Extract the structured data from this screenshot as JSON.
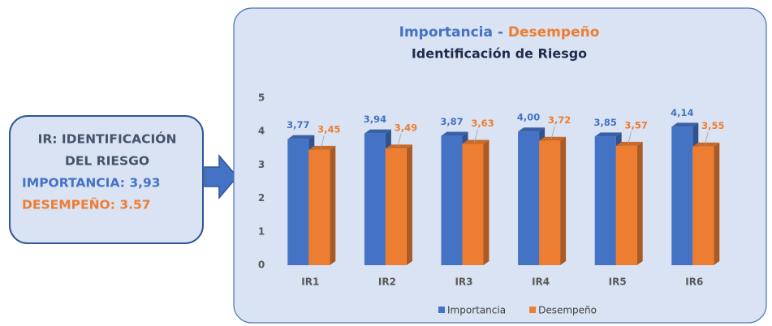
{
  "callout": {
    "lines": [
      "IR: IDENTIFICACIÓN",
      "DEL RIESGO"
    ],
    "importance": "IMPORTANCIA: 3,93",
    "performance": "DESEMPEÑO: 3.57"
  },
  "chart_data": {
    "type": "bar3d",
    "title": [
      "Importancia",
      "-",
      "Desempeño"
    ],
    "subtitle": "Identificación de Riesgo",
    "categories": [
      "IR1",
      "IR2",
      "IR3",
      "IR4",
      "IR5",
      "IR6"
    ],
    "series": [
      {
        "name": "Importancia",
        "color": "#4472c4",
        "values": [
          3.77,
          3.94,
          3.87,
          4.0,
          3.85,
          4.14
        ],
        "value_labels": [
          "3,77",
          "3,94",
          "3,87",
          "4,00",
          "3,85",
          "4,14"
        ]
      },
      {
        "name": "Desempeño",
        "color": "#ed7d31",
        "values": [
          3.45,
          3.49,
          3.63,
          3.72,
          3.57,
          3.55
        ],
        "value_labels": [
          "3,45",
          "3,49",
          "3,63",
          "3,72",
          "3,57",
          "3,55"
        ]
      }
    ],
    "ylim": [
      0,
      5
    ],
    "yticks": [
      0,
      1,
      2,
      3,
      4,
      5
    ],
    "grid": false,
    "legend": "bottom"
  }
}
